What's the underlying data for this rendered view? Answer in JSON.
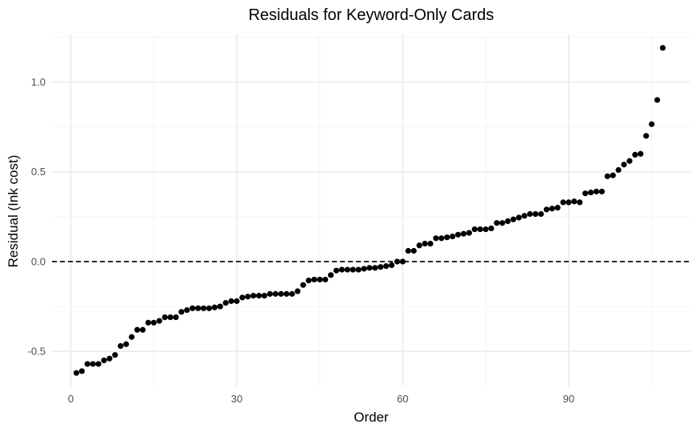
{
  "chart_data": {
    "type": "scatter",
    "title": "Residuals for Keyword-Only Cards",
    "xlabel": "Order",
    "ylabel": "Residual (Ink cost)",
    "x": [
      1,
      2,
      3,
      4,
      5,
      6,
      7,
      8,
      9,
      10,
      11,
      12,
      13,
      14,
      15,
      16,
      17,
      18,
      19,
      20,
      21,
      22,
      23,
      24,
      25,
      26,
      27,
      28,
      29,
      30,
      31,
      32,
      33,
      34,
      35,
      36,
      37,
      38,
      39,
      40,
      41,
      42,
      43,
      44,
      45,
      46,
      47,
      48,
      49,
      50,
      51,
      52,
      53,
      54,
      55,
      56,
      57,
      58,
      59,
      60,
      61,
      62,
      63,
      64,
      65,
      66,
      67,
      68,
      69,
      70,
      71,
      72,
      73,
      74,
      75,
      76,
      77,
      78,
      79,
      80,
      81,
      82,
      83,
      84,
      85,
      86,
      87,
      88,
      89,
      90,
      91,
      92,
      93,
      94,
      95,
      96,
      97,
      98,
      99,
      100,
      101,
      102,
      103,
      104,
      105,
      106,
      107
    ],
    "y": [
      -0.62,
      -0.61,
      -0.57,
      -0.57,
      -0.57,
      -0.55,
      -0.54,
      -0.52,
      -0.47,
      -0.46,
      -0.42,
      -0.38,
      -0.38,
      -0.34,
      -0.34,
      -0.33,
      -0.31,
      -0.31,
      -0.31,
      -0.28,
      -0.27,
      -0.26,
      -0.26,
      -0.26,
      -0.26,
      -0.255,
      -0.25,
      -0.23,
      -0.22,
      -0.22,
      -0.2,
      -0.195,
      -0.19,
      -0.19,
      -0.19,
      -0.18,
      -0.18,
      -0.18,
      -0.18,
      -0.18,
      -0.165,
      -0.13,
      -0.105,
      -0.1,
      -0.1,
      -0.1,
      -0.075,
      -0.05,
      -0.045,
      -0.045,
      -0.045,
      -0.045,
      -0.04,
      -0.035,
      -0.035,
      -0.03,
      -0.025,
      -0.02,
      0.0,
      0.0,
      0.06,
      0.06,
      0.09,
      0.1,
      0.1,
      0.13,
      0.13,
      0.135,
      0.14,
      0.15,
      0.155,
      0.16,
      0.18,
      0.18,
      0.18,
      0.185,
      0.215,
      0.215,
      0.225,
      0.235,
      0.245,
      0.255,
      0.265,
      0.265,
      0.265,
      0.29,
      0.295,
      0.3,
      0.33,
      0.33,
      0.335,
      0.33,
      0.38,
      0.385,
      0.39,
      0.39,
      0.475,
      0.48,
      0.51,
      0.54,
      0.56,
      0.595,
      0.6,
      0.7,
      0.765,
      0.9,
      1.19
    ],
    "xlim": [
      -3.4,
      112
    ],
    "ylim": [
      -0.695,
      1.265
    ],
    "x_ticks": [
      0,
      30,
      60,
      90
    ],
    "y_ticks": [
      -0.5,
      0.0,
      0.5,
      1.0
    ],
    "y_tick_labels": [
      "-0.5",
      "0.0",
      "0.5",
      "1.0"
    ],
    "reference_line": {
      "y": 0,
      "style": "dashed"
    },
    "grid": true,
    "legend": "none",
    "colors": {
      "point": "#000000",
      "grid_major": "#ebebeb",
      "grid_minor": "#f4f4f4",
      "reference_line": "#000000"
    }
  }
}
